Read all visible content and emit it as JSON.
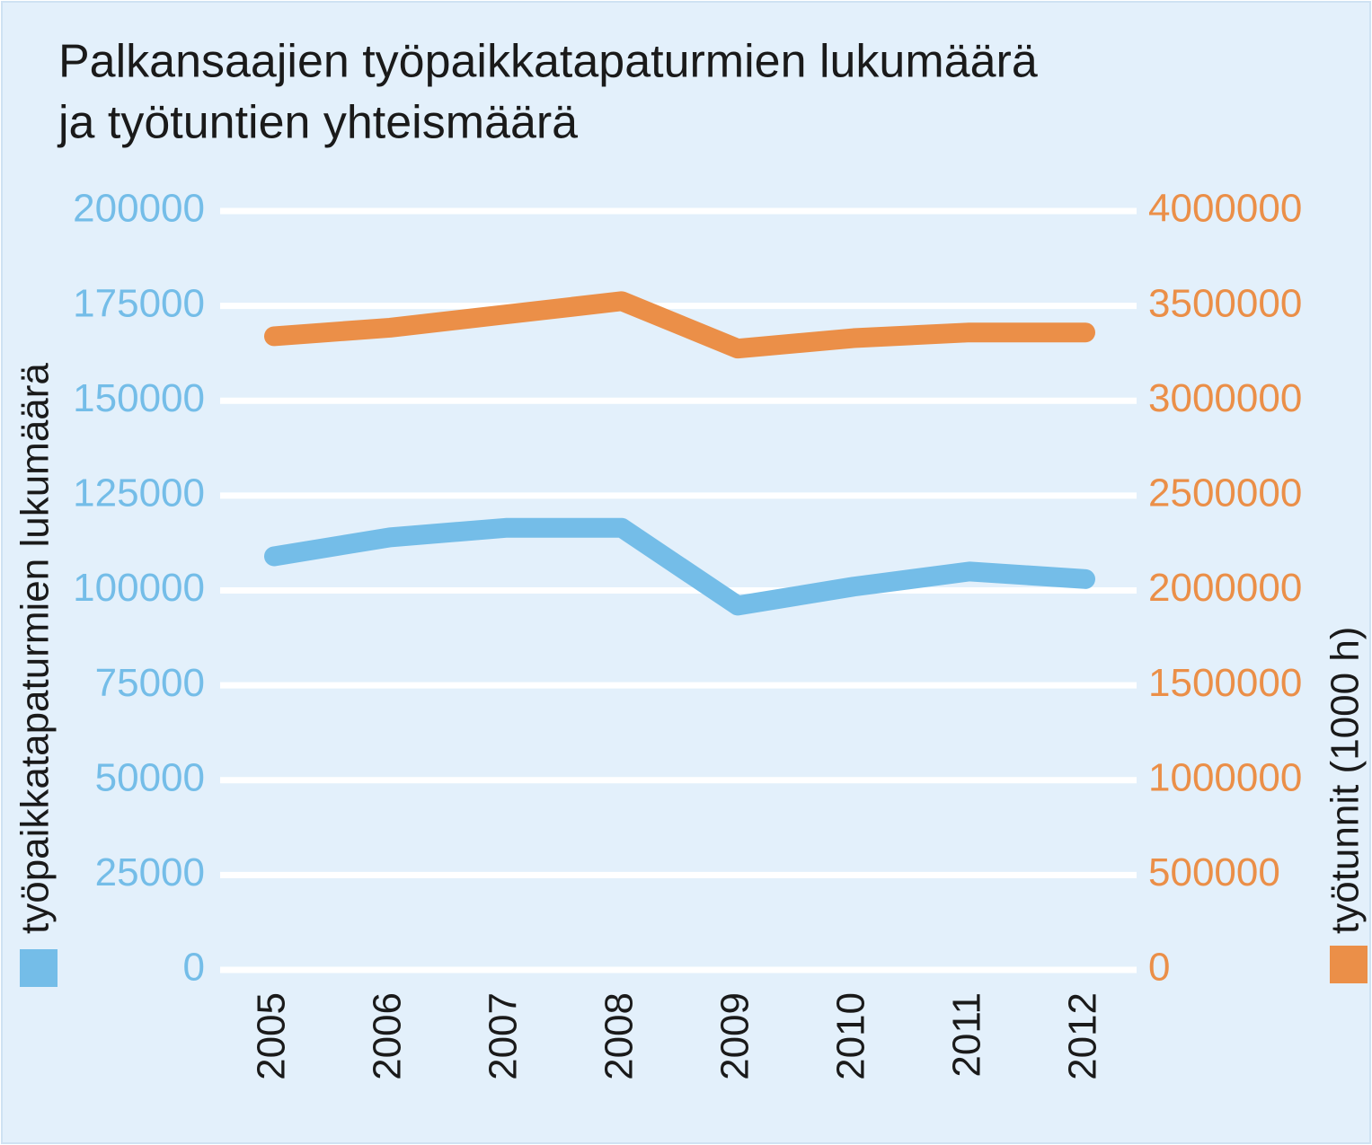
{
  "chart_data": {
    "type": "line",
    "title": [
      "Palkansaajien työpaikkatapaturmien lukumäärä",
      "ja työtuntien yhteismäärä"
    ],
    "categories": [
      "2005",
      "2006",
      "2007",
      "2008",
      "2009",
      "2010",
      "2011",
      "2012"
    ],
    "series": [
      {
        "name": "työpaikkatapaturmien lukumäärä",
        "color": "#74bde8",
        "axis": "y",
        "values": [
          109000,
          114000,
          116500,
          116500,
          96000,
          101000,
          105000,
          103000
        ]
      },
      {
        "name": "työtunnit (1000 h)",
        "color": "#eb8f48",
        "axis": "y2",
        "values": [
          3340000,
          3385000,
          3455000,
          3525000,
          3275000,
          3330000,
          3360000,
          3360000
        ]
      }
    ],
    "ylim": [
      0,
      200000
    ],
    "yticks": [
      0,
      25000,
      50000,
      75000,
      100000,
      125000,
      150000,
      175000,
      200000
    ],
    "y2lim": [
      0,
      4000000
    ],
    "y2ticks": [
      0,
      500000,
      1000000,
      1500000,
      2000000,
      2500000,
      3000000,
      3500000,
      4000000
    ],
    "grid": true
  }
}
